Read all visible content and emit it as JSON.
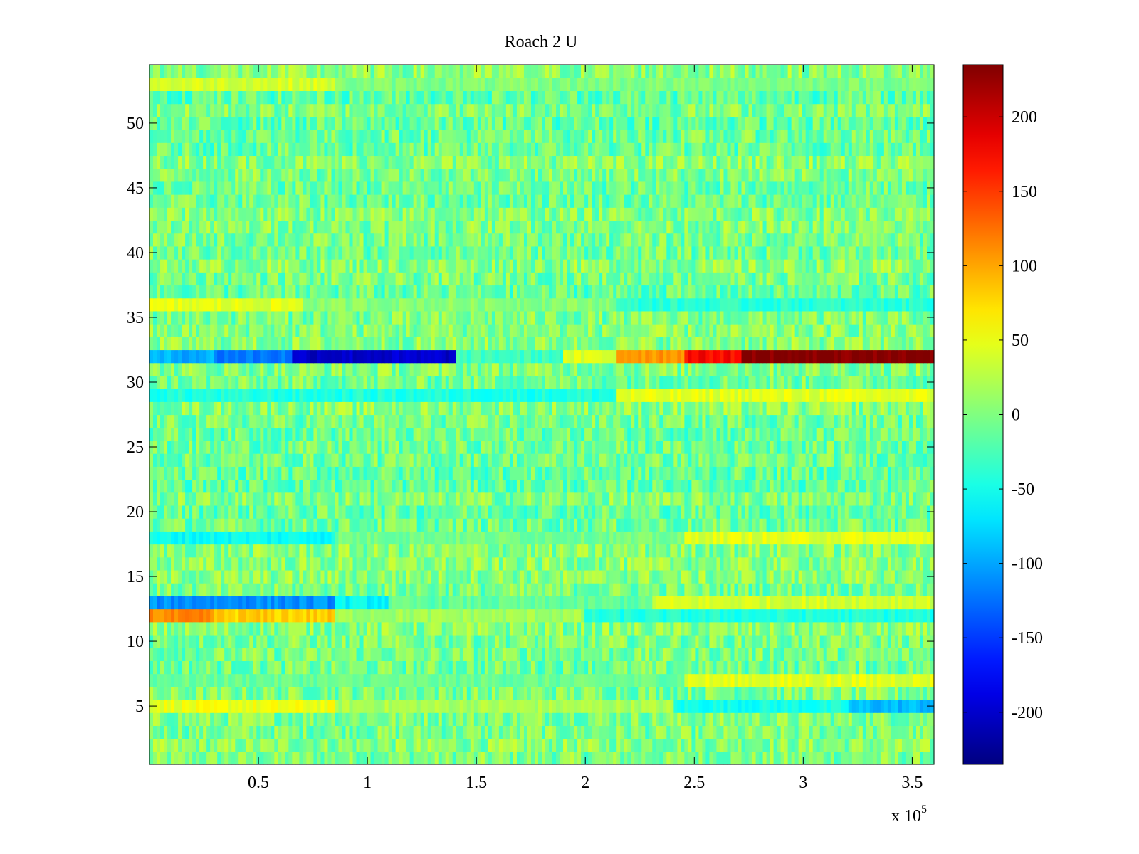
{
  "chart_data": {
    "type": "heatmap",
    "title": "Roach 2 U",
    "xlabel": "",
    "ylabel": "",
    "x_multiplier_label": "x 10",
    "x_multiplier_exponent": "5",
    "xlim": [
      0,
      360000
    ],
    "ylim": [
      0.5,
      54.5
    ],
    "x_ticks": [
      {
        "value": 50000,
        "label": "0.5"
      },
      {
        "value": 100000,
        "label": "1"
      },
      {
        "value": 150000,
        "label": "1.5"
      },
      {
        "value": 200000,
        "label": "2"
      },
      {
        "value": 250000,
        "label": "2.5"
      },
      {
        "value": 300000,
        "label": "3"
      },
      {
        "value": 350000,
        "label": "3.5"
      }
    ],
    "y_ticks": [
      {
        "value": 5,
        "label": "5"
      },
      {
        "value": 10,
        "label": "10"
      },
      {
        "value": 15,
        "label": "15"
      },
      {
        "value": 20,
        "label": "20"
      },
      {
        "value": 25,
        "label": "25"
      },
      {
        "value": 30,
        "label": "30"
      },
      {
        "value": 35,
        "label": "35"
      },
      {
        "value": 40,
        "label": "40"
      },
      {
        "value": 45,
        "label": "45"
      },
      {
        "value": 50,
        "label": "50"
      }
    ],
    "rows": 54,
    "colormap": "jet",
    "colorbar": {
      "clim": [
        -235,
        235
      ],
      "ticks": [
        {
          "value": 200,
          "label": "200"
        },
        {
          "value": 150,
          "label": "150"
        },
        {
          "value": 100,
          "label": "100"
        },
        {
          "value": 50,
          "label": "50"
        },
        {
          "value": 0,
          "label": "0"
        },
        {
          "value": -50,
          "label": "-50"
        },
        {
          "value": -100,
          "label": "-100"
        },
        {
          "value": -150,
          "label": "-150"
        },
        {
          "value": -200,
          "label": "-200"
        }
      ]
    },
    "row_profiles": [
      {
        "row": 32,
        "segments": [
          {
            "x": [
              0,
              30000
            ],
            "value": -95
          },
          {
            "x": [
              30000,
              65000
            ],
            "value": -120
          },
          {
            "x": [
              65000,
              140000
            ],
            "value": -200
          },
          {
            "x": [
              140000,
              190000
            ],
            "value": -30
          },
          {
            "x": [
              190000,
              215000
            ],
            "value": 40
          },
          {
            "x": [
              215000,
              245000
            ],
            "value": 110
          },
          {
            "x": [
              245000,
              272000
            ],
            "value": 175
          },
          {
            "x": [
              272000,
              360000
            ],
            "value": 235
          }
        ]
      },
      {
        "row": 13,
        "segments": [
          {
            "x": [
              0,
              85000
            ],
            "value": -110
          },
          {
            "x": [
              85000,
              110000
            ],
            "value": -60
          },
          {
            "x": [
              110000,
              230000
            ],
            "value": -15
          },
          {
            "x": [
              230000,
              360000
            ],
            "value": 40
          }
        ]
      },
      {
        "row": 12,
        "segments": [
          {
            "x": [
              0,
              30000
            ],
            "value": 110
          },
          {
            "x": [
              30000,
              85000
            ],
            "value": 80
          },
          {
            "x": [
              85000,
              200000
            ],
            "value": 15
          },
          {
            "x": [
              200000,
              360000
            ],
            "value": -45
          }
        ]
      },
      {
        "row": 29,
        "segments": [
          {
            "x": [
              0,
              215000
            ],
            "value": -45
          },
          {
            "x": [
              215000,
              360000
            ],
            "value": 45
          }
        ]
      },
      {
        "row": 36,
        "segments": [
          {
            "x": [
              0,
              70000
            ],
            "value": 45
          },
          {
            "x": [
              70000,
              215000
            ],
            "value": 5
          },
          {
            "x": [
              215000,
              360000
            ],
            "value": -40
          }
        ]
      },
      {
        "row": 5,
        "segments": [
          {
            "x": [
              0,
              85000
            ],
            "value": 50
          },
          {
            "x": [
              85000,
              240000
            ],
            "value": 20
          },
          {
            "x": [
              240000,
              320000
            ],
            "value": -50
          },
          {
            "x": [
              320000,
              360000
            ],
            "value": -90
          }
        ]
      },
      {
        "row": 18,
        "segments": [
          {
            "x": [
              0,
              85000
            ],
            "value": -55
          },
          {
            "x": [
              85000,
              245000
            ],
            "value": -5
          },
          {
            "x": [
              245000,
              360000
            ],
            "value": 45
          }
        ]
      },
      {
        "row": 7,
        "segments": [
          {
            "x": [
              0,
              245000
            ],
            "value": -10
          },
          {
            "x": [
              245000,
              360000
            ],
            "value": 45
          }
        ]
      },
      {
        "row": 53,
        "segments": [
          {
            "x": [
              0,
              85000
            ],
            "value": 40
          },
          {
            "x": [
              85000,
              360000
            ],
            "value": 0
          }
        ]
      }
    ],
    "background_range": [
      -40,
      30
    ]
  }
}
